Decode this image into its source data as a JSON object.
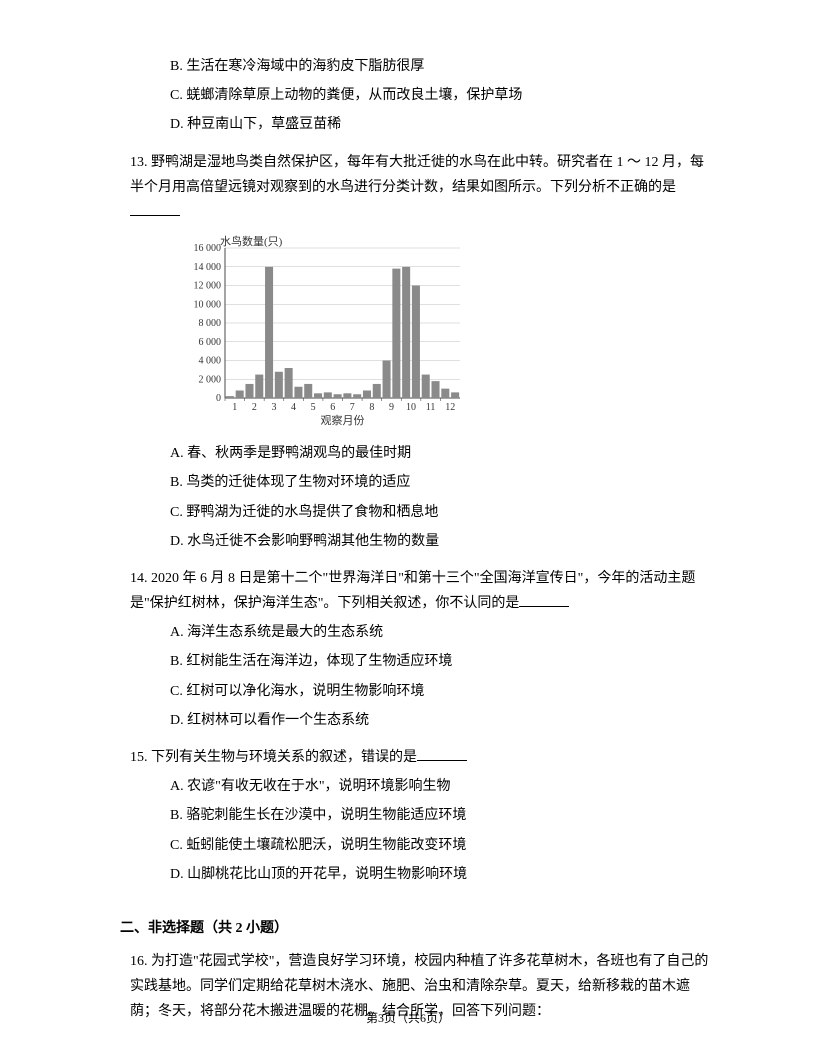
{
  "q12_options": {
    "B": "B. 生活在寒冷海域中的海豹皮下脂肪很厚",
    "C": "C. 蜣螂清除草原上动物的粪便，从而改良土壤，保护草场",
    "D": "D. 种豆南山下，草盛豆苗稀"
  },
  "q13": {
    "stem": "13. 野鸭湖是湿地鸟类自然保护区，每年有大批迁徙的水鸟在此中转。研究者在 1 ～ 12 月，每半个月用高倍望远镜对观察到的水鸟进行分类计数，结果如图所示。下列分析不正确的是",
    "options": {
      "A": "A. 春、秋两季是野鸭湖观鸟的最佳时期",
      "B": "B. 鸟类的迁徙体现了生物对环境的适应",
      "C": "C. 野鸭湖为迁徙的水鸟提供了食物和栖息地",
      "D": "D. 水鸟迁徙不会影响野鸭湖其他生物的数量"
    }
  },
  "q14": {
    "stem": "14. 2020 年 6 月 8 日是第十二个\"世界海洋日\"和第十三个\"全国海洋宣传日\"，今年的活动主题是\"保护红树林，保护海洋生态\"。下列相关叙述，你不认同的是",
    "options": {
      "A": "A. 海洋生态系统是最大的生态系统",
      "B": "B. 红树能生活在海洋边，体现了生物适应环境",
      "C": "C. 红树可以净化海水，说明生物影响环境",
      "D": "D. 红树林可以看作一个生态系统"
    }
  },
  "q15": {
    "stem": "15. 下列有关生物与环境关系的叙述，错误的是",
    "options": {
      "A": "A. 农谚\"有收无收在于水\"，说明环境影响生物",
      "B": "B. 骆驼刺能生长在沙漠中，说明生物能适应环境",
      "C": "C. 蚯蚓能使土壤疏松肥沃，说明生物能改变环境",
      "D": "D. 山脚桃花比山顶的开花早，说明生物影响环境"
    }
  },
  "section2": "二、非选择题（共 2 小题）",
  "q16": {
    "stem": "16. 为打造\"花园式学校\"，营造良好学习环境，校园内种植了许多花草树木，各班也有了自己的实践基地。同学们定期给花草树木浇水、施肥、治虫和清除杂草。夏天，给新移栽的苗木遮荫；冬天，将部分花木搬进温暖的花棚。结合所学，回答下列问题："
  },
  "footer": "第3页（共6页）",
  "chart": {
    "type": "bar",
    "y_label": "水鸟数量(只)",
    "x_label": "观察月份",
    "x_categories": [
      "1",
      "2",
      "3",
      "4",
      "5",
      "6",
      "7",
      "8",
      "9",
      "10",
      "11",
      "12"
    ],
    "ylim": [
      0,
      16000
    ],
    "ytick_step": 2000,
    "yticks": [
      "0",
      "2 000",
      "4 000",
      "6 000",
      "8 000",
      "10 000",
      "12 000",
      "14 000",
      "16 000"
    ],
    "values": [
      200,
      800,
      1500,
      2500,
      14000,
      2800,
      3200,
      1200,
      1500,
      500,
      600,
      400,
      500,
      400,
      800,
      1500,
      4000,
      13800,
      14000,
      12000,
      2500,
      1800,
      1000,
      600
    ],
    "bar_color": "#8a8a8a",
    "axis_color": "#4a4a4a",
    "grid_color": "#bfbfbf",
    "background_color": "#ffffff",
    "label_fontsize": 11,
    "tick_fontsize": 10
  }
}
